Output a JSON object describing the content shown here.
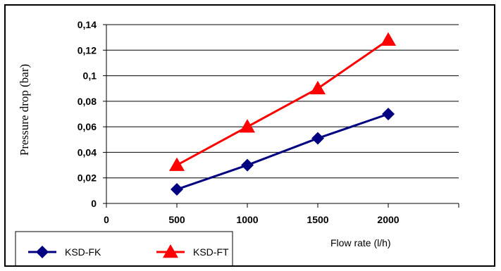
{
  "chart_data": {
    "type": "line",
    "title": "",
    "xlabel": "Flow rate (l/h)",
    "ylabel": "Pressure drop (bar)",
    "x": [
      500,
      1000,
      1500,
      2000
    ],
    "xlim": [
      0,
      2500
    ],
    "ylim": [
      0,
      0.14
    ],
    "x_ticks": [
      "0",
      "500",
      "1000",
      "1500",
      "2000"
    ],
    "x_tick_values": [
      0,
      500,
      1000,
      1500,
      2000
    ],
    "y_ticks": [
      "0",
      "0,02",
      "0,04",
      "0,06",
      "0,08",
      "0,1",
      "0,12",
      "0,14"
    ],
    "y_tick_values": [
      0,
      0.02,
      0.04,
      0.06,
      0.08,
      0.1,
      0.12,
      0.14
    ],
    "grid": "horizontal",
    "legend_position": "bottom-left",
    "series": [
      {
        "name": "KSD-FK",
        "values": [
          0.011,
          0.03,
          0.051,
          0.07
        ],
        "color": "#000080",
        "marker": "diamond"
      },
      {
        "name": "KSD-FT",
        "values": [
          0.03,
          0.06,
          0.09,
          0.128
        ],
        "color": "#ff0000",
        "marker": "triangle"
      }
    ]
  }
}
